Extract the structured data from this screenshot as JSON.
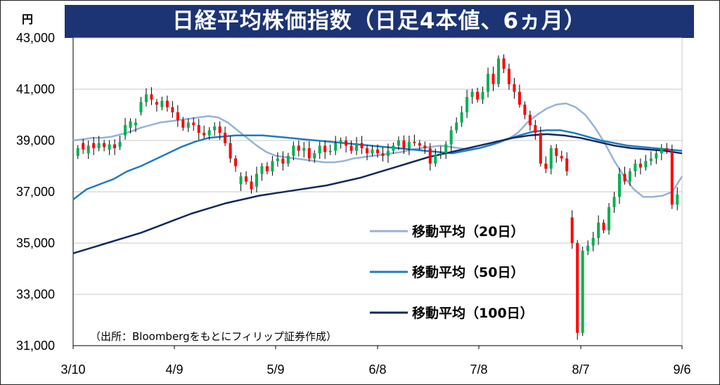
{
  "chart_data": {
    "type": "candlestick",
    "title": "日経平均株価指数（日足4本値、6ヵ月）",
    "unit": "円",
    "source_note": "（出所：Bloombergをもとにフィリップ証券作成）",
    "y_ticks": [
      "43,000",
      "41,000",
      "39,000",
      "37,000",
      "35,000",
      "33,000",
      "31,000"
    ],
    "ylim": [
      31000,
      43000
    ],
    "x_ticks": [
      "3/10",
      "4/9",
      "5/9",
      "6/8",
      "7/8",
      "8/7",
      "9/6"
    ],
    "grid": "horizontal",
    "legend_position": "lower-right inside plot",
    "colors": {
      "up": "#00b050",
      "down": "#ff0000",
      "ma20": "#95b3d7",
      "ma50": "#1f7bc0",
      "ma100": "#14285c",
      "grid": "#c8c8c8",
      "title_bg": "#1c3474"
    },
    "series": [
      {
        "name": "移動平均（20日）",
        "color_key": "ma20"
      },
      {
        "name": "移動平均（50日）",
        "color_key": "ma50"
      },
      {
        "name": "移動平均（100日）",
        "color_key": "ma100"
      }
    ],
    "candles_close": [
      38700,
      38650,
      38800,
      38700,
      38900,
      38750,
      38850,
      38700,
      38950,
      39600,
      39750,
      39700,
      40500,
      40800,
      40600,
      40400,
      40550,
      40300,
      40100,
      39800,
      39500,
      39700,
      39600,
      39300,
      39200,
      39400,
      39550,
      39300,
      38900,
      38300,
      38000,
      37600,
      37400,
      37100,
      37700,
      38000,
      37800,
      38200,
      38300,
      38100,
      38400,
      38800,
      38600,
      38700,
      38300,
      38500,
      38800,
      38550,
      38600,
      38900,
      39000,
      38800,
      38600,
      38900,
      38700,
      38500,
      38650,
      38500,
      38400,
      38600,
      38800,
      39000,
      38700,
      38950,
      38900,
      38800,
      38700,
      38100,
      38450,
      38500,
      38850,
      39400,
      39700,
      40100,
      40700,
      40900,
      40600,
      40900,
      41600,
      41200,
      42200,
      41800,
      41200,
      40900,
      40400,
      40000,
      39600,
      39300,
      38100,
      37900,
      38700,
      38400,
      38300,
      37800,
      35000,
      31500,
      34700,
      34900,
      35200,
      35800,
      35500,
      36400,
      36800,
      37700,
      37400,
      37800,
      38100,
      37950,
      38200,
      38300,
      38500,
      38700,
      38600,
      36500,
      36900
    ],
    "candles_open": [
      38400,
      38900,
      38500,
      38900,
      38700,
      38900,
      38650,
      38850,
      38750,
      39200,
      39500,
      39600,
      40100,
      40500,
      40800,
      40500,
      40300,
      40550,
      40300,
      40100,
      39800,
      39500,
      39700,
      39600,
      39300,
      39200,
      39400,
      39550,
      39300,
      38900,
      38300,
      37300,
      37600,
      37400,
      37200,
      37700,
      38000,
      37800,
      38200,
      38300,
      38100,
      38400,
      38800,
      38600,
      38700,
      38300,
      38500,
      38800,
      38550,
      38600,
      38900,
      39000,
      38800,
      38600,
      38900,
      38700,
      38500,
      38650,
      38500,
      38400,
      38600,
      38800,
      39000,
      38700,
      38950,
      38900,
      38800,
      38700,
      38100,
      38450,
      38500,
      38850,
      39400,
      39700,
      40100,
      40700,
      40900,
      40600,
      40900,
      41600,
      41200,
      42200,
      41800,
      41200,
      40900,
      40400,
      40000,
      39600,
      39300,
      38100,
      37900,
      38700,
      38400,
      38300,
      36000,
      35000,
      31500,
      34700,
      34900,
      35200,
      35800,
      35500,
      36400,
      36800,
      37700,
      37400,
      37800,
      38100,
      37950,
      38200,
      38300,
      38500,
      38700,
      38600,
      36500
    ],
    "ma20": [
      39000,
      39050,
      39100,
      39100,
      39150,
      39250,
      39350,
      39500,
      39600,
      39700,
      39750,
      39800,
      39850,
      39900,
      39950,
      39900,
      39700,
      39400,
      39100,
      38800,
      38550,
      38400,
      38350,
      38300,
      38250,
      38200,
      38150,
      38150,
      38200,
      38300,
      38350,
      38400,
      38450,
      38500,
      38550,
      38650,
      38700,
      38750,
      38800,
      38750,
      38700,
      38650,
      38700,
      38800,
      38900,
      39050,
      39300,
      39700,
      40000,
      40250,
      40400,
      40450,
      40300,
      40000,
      39500,
      38900,
      38200,
      37600,
      37100,
      36800,
      36800,
      36850,
      37000,
      37600
    ],
    "ma50": [
      36700,
      37100,
      37300,
      37500,
      37800,
      38000,
      38250,
      38500,
      38750,
      38950,
      39100,
      39150,
      39200,
      39200,
      39200,
      39150,
      39100,
      39050,
      39000,
      38950,
      38900,
      38850,
      38800,
      38750,
      38700,
      38650,
      38600,
      38550,
      38500,
      38600,
      38700,
      38850,
      39050,
      39200,
      39350,
      39400,
      39400,
      39300,
      39150,
      39000,
      38900,
      38800,
      38750,
      38700,
      38650,
      38600
    ],
    "ma100": [
      34600,
      34800,
      35000,
      35200,
      35400,
      35650,
      35900,
      36150,
      36350,
      36550,
      36700,
      36850,
      36950,
      37050,
      37150,
      37250,
      37400,
      37550,
      37750,
      37950,
      38150,
      38350,
      38500,
      38650,
      38800,
      38950,
      39100,
      39200,
      39250,
      39200,
      39100,
      38950,
      38800,
      38700,
      38650,
      38600,
      38500
    ]
  }
}
